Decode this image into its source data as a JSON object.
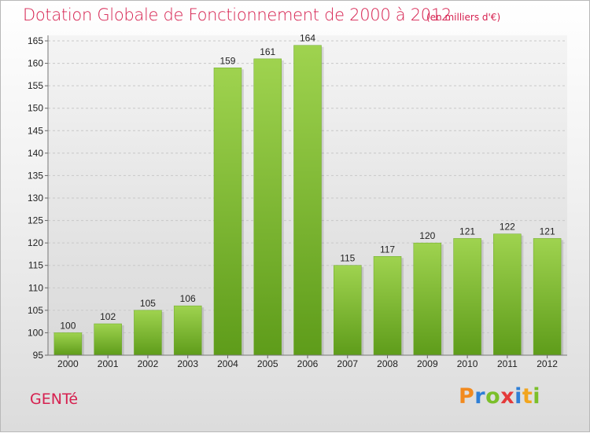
{
  "title": "Dotation Globale de Fonctionnement de 2000 à 2012",
  "unit_note": "(en milliers d'€)",
  "commune": "GENTé",
  "logo": {
    "letters": [
      "P",
      "r",
      "o",
      "x",
      "i",
      "t",
      "i"
    ],
    "colors": [
      "#f28a1e",
      "#2f7fd6",
      "#7bbf2a",
      "#e43a3a",
      "#2f7fd6",
      "#f2a51e",
      "#7bbf2a"
    ]
  },
  "chart_data": {
    "type": "bar",
    "categories": [
      "2000",
      "2001",
      "2002",
      "2003",
      "2004",
      "2005",
      "2006",
      "2007",
      "2008",
      "2009",
      "2010",
      "2011",
      "2012"
    ],
    "values": [
      100,
      102,
      105,
      106,
      159,
      161,
      164,
      115,
      117,
      120,
      121,
      122,
      121
    ],
    "title": "Dotation Globale de Fonctionnement de 2000 à 2012",
    "ylim": [
      95,
      165
    ],
    "yticks": [
      95,
      100,
      105,
      110,
      115,
      120,
      125,
      130,
      135,
      140,
      145,
      150,
      155,
      160,
      165
    ],
    "grid": true,
    "bar_color": "#8cc63f"
  }
}
